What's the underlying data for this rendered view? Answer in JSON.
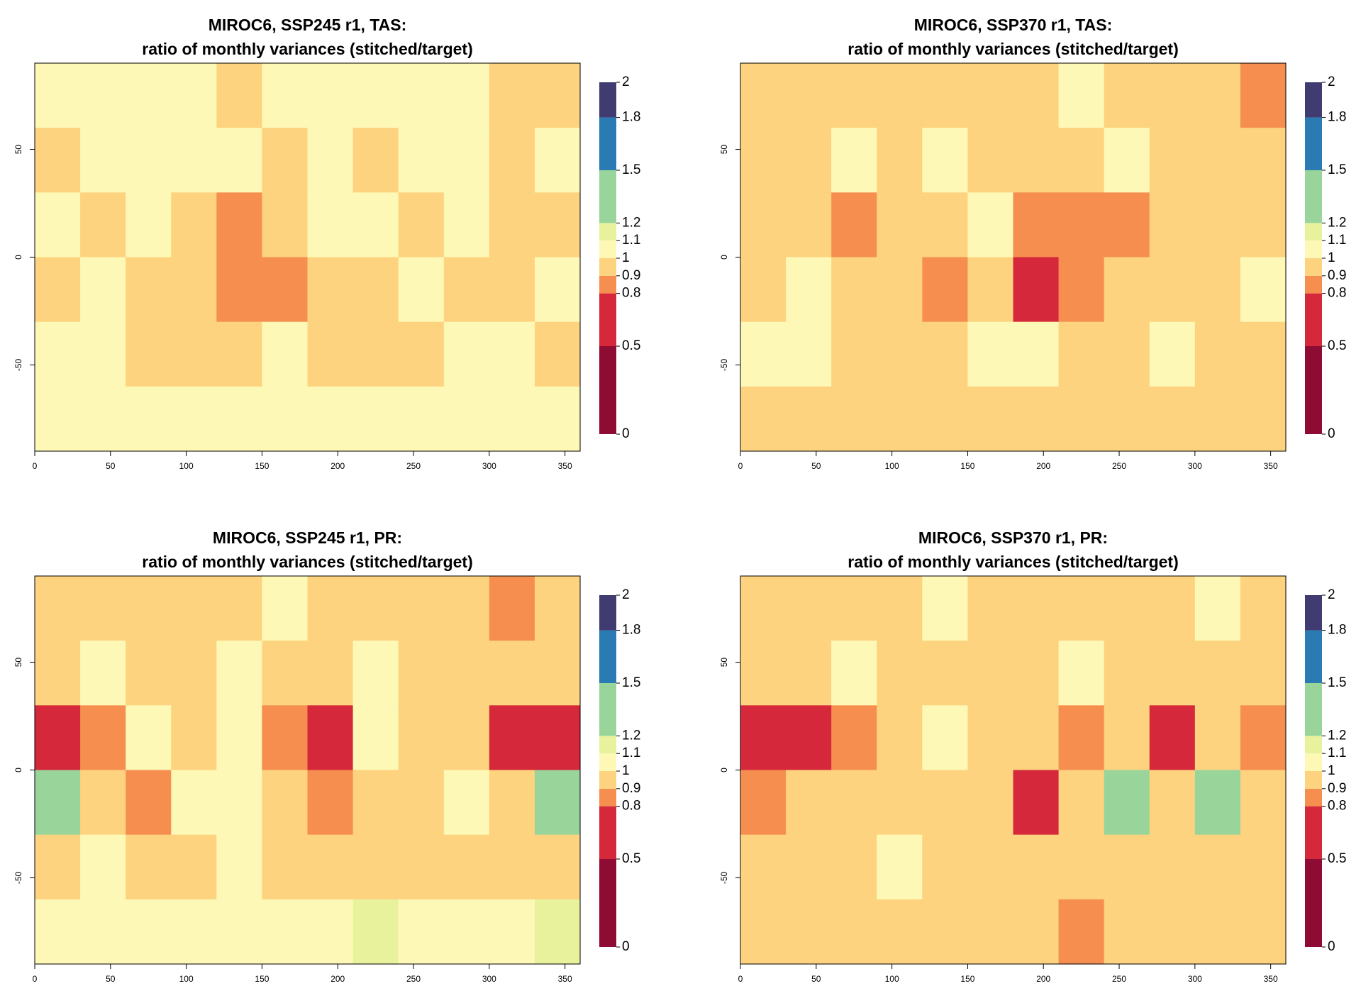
{
  "chart_data": [
    {
      "type": "heatmap",
      "title": "MIROC6, SSP245 r1, TAS:",
      "subtitle": "ratio of monthly variances (stitched/target)",
      "x": [
        15,
        45,
        75,
        105,
        135,
        165,
        195,
        225,
        255,
        285,
        315,
        345
      ],
      "y": [
        75,
        45,
        15,
        -15,
        -45,
        -75
      ],
      "values": [
        [
          1.05,
          1.05,
          1.05,
          1.05,
          0.95,
          1.05,
          1.05,
          1.05,
          1.05,
          1.05,
          0.95,
          0.95
        ],
        [
          0.95,
          1.05,
          1.05,
          1.05,
          1.05,
          0.95,
          1.05,
          0.95,
          1.05,
          1.05,
          0.95,
          1.05
        ],
        [
          1.05,
          0.95,
          1.05,
          0.95,
          0.85,
          0.95,
          1.05,
          1.05,
          0.95,
          1.05,
          0.95,
          0.95
        ],
        [
          0.95,
          1.05,
          0.95,
          0.95,
          0.85,
          0.85,
          0.95,
          0.95,
          1.05,
          0.95,
          0.95,
          1.05
        ],
        [
          1.05,
          1.05,
          0.95,
          0.95,
          0.95,
          1.05,
          0.95,
          0.95,
          0.95,
          1.05,
          1.05,
          0.95
        ],
        [
          1.05,
          1.05,
          1.05,
          1.05,
          1.05,
          1.05,
          1.05,
          1.05,
          1.05,
          1.05,
          1.05,
          1.05
        ]
      ],
      "xlim": [
        0,
        360
      ],
      "ylim": [
        -90,
        90
      ],
      "xticks": [
        0,
        50,
        100,
        150,
        200,
        250,
        300,
        350
      ],
      "yticks": [
        -50,
        0,
        50
      ],
      "zlim": [
        0,
        2
      ],
      "zticks": [
        0,
        0.5,
        0.8,
        0.9,
        1,
        1.1,
        1.2,
        1.5,
        1.8,
        2
      ],
      "colors": [
        "#8e0b33",
        "#d5283a",
        "#f58e4f",
        "#fdd37f",
        "#fef8b6",
        "#e8f29c",
        "#99d49b",
        "#2a7ab4",
        "#403b70"
      ]
    },
    {
      "type": "heatmap",
      "title": "MIROC6, SSP370 r1, TAS:",
      "subtitle": "ratio of monthly variances (stitched/target)",
      "x": [
        15,
        45,
        75,
        105,
        135,
        165,
        195,
        225,
        255,
        285,
        315,
        345
      ],
      "y": [
        75,
        45,
        15,
        -15,
        -45,
        -75
      ],
      "values": [
        [
          0.95,
          0.95,
          0.95,
          0.95,
          0.95,
          0.95,
          0.95,
          1.05,
          0.95,
          0.95,
          0.95,
          0.85
        ],
        [
          0.95,
          0.95,
          1.05,
          0.95,
          1.05,
          0.95,
          0.95,
          0.95,
          1.05,
          0.95,
          0.95,
          0.95
        ],
        [
          0.95,
          0.95,
          0.85,
          0.95,
          0.95,
          1.05,
          0.85,
          0.85,
          0.85,
          0.95,
          0.95,
          0.95
        ],
        [
          0.95,
          1.05,
          0.95,
          0.95,
          0.85,
          0.95,
          0.65,
          0.85,
          0.95,
          0.95,
          0.95,
          1.05
        ],
        [
          1.05,
          1.05,
          0.95,
          0.95,
          0.95,
          1.05,
          1.05,
          0.95,
          0.95,
          1.05,
          0.95,
          0.95
        ],
        [
          0.95,
          0.95,
          0.95,
          0.95,
          0.95,
          0.95,
          0.95,
          0.95,
          0.95,
          0.95,
          0.95,
          0.95
        ]
      ],
      "xlim": [
        0,
        360
      ],
      "ylim": [
        -90,
        90
      ],
      "xticks": [
        0,
        50,
        100,
        150,
        200,
        250,
        300,
        350
      ],
      "yticks": [
        -50,
        0,
        50
      ],
      "zlim": [
        0,
        2
      ],
      "zticks": [
        0,
        0.5,
        0.8,
        0.9,
        1,
        1.1,
        1.2,
        1.5,
        1.8,
        2
      ],
      "colors": [
        "#8e0b33",
        "#d5283a",
        "#f58e4f",
        "#fdd37f",
        "#fef8b6",
        "#e8f29c",
        "#99d49b",
        "#2a7ab4",
        "#403b70"
      ]
    },
    {
      "type": "heatmap",
      "title": "MIROC6, SSP245 r1, PR:",
      "subtitle": "ratio of monthly variances (stitched/target)",
      "x": [
        15,
        45,
        75,
        105,
        135,
        165,
        195,
        225,
        255,
        285,
        315,
        345
      ],
      "y": [
        75,
        45,
        15,
        -15,
        -45,
        -75
      ],
      "values": [
        [
          0.95,
          0.95,
          0.95,
          0.95,
          0.95,
          1.05,
          0.95,
          0.95,
          0.95,
          0.95,
          0.85,
          0.95
        ],
        [
          0.95,
          1.05,
          0.95,
          0.95,
          1.05,
          0.95,
          0.95,
          1.05,
          0.95,
          0.95,
          0.95,
          0.95
        ],
        [
          0.65,
          0.85,
          1.05,
          0.95,
          1.05,
          0.85,
          0.65,
          1.05,
          0.95,
          0.95,
          0.65,
          0.65
        ],
        [
          1.35,
          0.95,
          0.85,
          1.05,
          1.05,
          0.95,
          0.85,
          0.95,
          0.95,
          1.05,
          0.95,
          1.35
        ],
        [
          0.95,
          1.05,
          0.95,
          0.95,
          1.05,
          0.95,
          0.95,
          0.95,
          0.95,
          0.95,
          0.95,
          0.95
        ],
        [
          1.05,
          1.05,
          1.05,
          1.05,
          1.05,
          1.05,
          1.05,
          1.15,
          1.05,
          1.05,
          1.05,
          1.15
        ]
      ],
      "xlim": [
        0,
        360
      ],
      "ylim": [
        -90,
        90
      ],
      "xticks": [
        0,
        50,
        100,
        150,
        200,
        250,
        300,
        350
      ],
      "yticks": [
        -50,
        0,
        50
      ],
      "zlim": [
        0,
        2
      ],
      "zticks": [
        0,
        0.5,
        0.8,
        0.9,
        1,
        1.1,
        1.2,
        1.5,
        1.8,
        2
      ],
      "colors": [
        "#8e0b33",
        "#d5283a",
        "#f58e4f",
        "#fdd37f",
        "#fef8b6",
        "#e8f29c",
        "#99d49b",
        "#2a7ab4",
        "#403b70"
      ]
    },
    {
      "type": "heatmap",
      "title": "MIROC6, SSP370 r1, PR:",
      "subtitle": "ratio of monthly variances (stitched/target)",
      "x": [
        15,
        45,
        75,
        105,
        135,
        165,
        195,
        225,
        255,
        285,
        315,
        345
      ],
      "y": [
        75,
        45,
        15,
        -15,
        -45,
        -75
      ],
      "values": [
        [
          0.95,
          0.95,
          0.95,
          0.95,
          1.05,
          0.95,
          0.95,
          0.95,
          0.95,
          0.95,
          1.05,
          0.95
        ],
        [
          0.95,
          0.95,
          1.05,
          0.95,
          0.95,
          0.95,
          0.95,
          1.05,
          0.95,
          0.95,
          0.95,
          0.95
        ],
        [
          0.65,
          0.65,
          0.85,
          0.95,
          1.05,
          0.95,
          0.95,
          0.85,
          0.95,
          0.65,
          0.95,
          0.85
        ],
        [
          0.85,
          0.95,
          0.95,
          0.95,
          0.95,
          0.95,
          0.65,
          0.95,
          1.35,
          0.95,
          1.35,
          0.95
        ],
        [
          0.95,
          0.95,
          0.95,
          1.05,
          0.95,
          0.95,
          0.95,
          0.95,
          0.95,
          0.95,
          0.95,
          0.95
        ],
        [
          0.95,
          0.95,
          0.95,
          0.95,
          0.95,
          0.95,
          0.95,
          0.85,
          0.95,
          0.95,
          0.95,
          0.95
        ]
      ],
      "xlim": [
        0,
        360
      ],
      "ylim": [
        -90,
        90
      ],
      "xticks": [
        0,
        50,
        100,
        150,
        200,
        250,
        300,
        350
      ],
      "yticks": [
        -50,
        0,
        50
      ],
      "zlim": [
        0,
        2
      ],
      "zticks": [
        0,
        0.5,
        0.8,
        0.9,
        1,
        1.1,
        1.2,
        1.5,
        1.8,
        2
      ],
      "colors": [
        "#8e0b33",
        "#d5283a",
        "#f58e4f",
        "#fdd37f",
        "#fef8b6",
        "#e8f29c",
        "#99d49b",
        "#2a7ab4",
        "#403b70"
      ]
    }
  ]
}
